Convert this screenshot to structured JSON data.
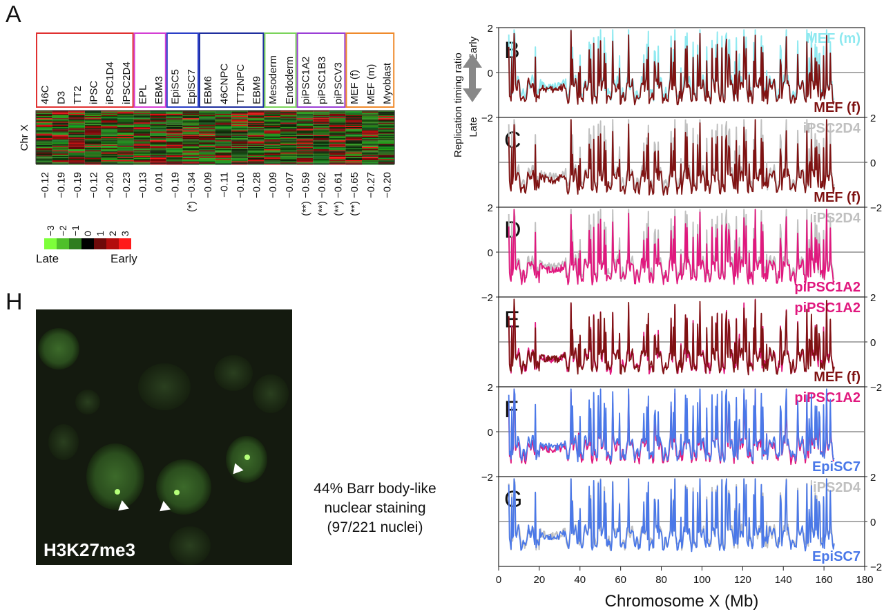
{
  "panel_letters": {
    "A": "A",
    "B": "B",
    "C": "C",
    "D": "D",
    "E": "E",
    "F": "F",
    "G": "G",
    "H": "H"
  },
  "heatmap": {
    "row_label": "Chr X",
    "groups": [
      {
        "color": "#e03131",
        "columns": [
          {
            "name": "46C",
            "score": "−0.12"
          },
          {
            "name": "D3",
            "score": "−0.19"
          },
          {
            "name": "TT2",
            "score": "−0.19"
          },
          {
            "name": "iPSC",
            "score": "−0.12"
          },
          {
            "name": "iPSC1D4",
            "score": "−0.20"
          },
          {
            "name": "iPSC2D4",
            "score": "−0.23"
          }
        ]
      },
      {
        "color": "#d43fd4",
        "columns": [
          {
            "name": "EPL",
            "score": "−0.13"
          },
          {
            "name": "EBM3",
            "score": "0.01"
          }
        ]
      },
      {
        "color": "#2b3fc7",
        "columns": [
          {
            "name": "EpiSC5",
            "score": "−0.19"
          },
          {
            "name": "EpiSC7",
            "score": "(*) −0.34"
          }
        ]
      },
      {
        "color": "#1f2f9e",
        "columns": [
          {
            "name": "EBM6",
            "score": "−0.09"
          },
          {
            "name": "46CNPC",
            "score": "−0.11"
          },
          {
            "name": "TT2NPC",
            "score": "−0.10"
          },
          {
            "name": "EBM9",
            "score": "−0.28"
          }
        ]
      },
      {
        "color": "#7bd35b",
        "columns": [
          {
            "name": "Mesoderm",
            "score": "−0.09"
          },
          {
            "name": "Endoderm",
            "score": "−0.07"
          }
        ]
      },
      {
        "color": "#9b3fd6",
        "columns": [
          {
            "name": "piPSC1A2",
            "score": "(**) −0.59"
          },
          {
            "name": "piPSC1B3",
            "score": "(**) −0.62"
          },
          {
            "name": "piPSCV3",
            "score": "(**) −0.61"
          }
        ]
      },
      {
        "color": "#ef8a2c",
        "columns": [
          {
            "name": "MEF (f)",
            "score": "(**) −0.65"
          },
          {
            "name": "MEF (m)",
            "score": "−0.27"
          },
          {
            "name": "Myoblast",
            "score": "−0.20"
          }
        ]
      }
    ],
    "scale": {
      "ticks": [
        "−3",
        "−2",
        "−1",
        "0",
        "1",
        "2",
        "3"
      ],
      "colors": [
        "#7dff3a",
        "#4fc02a",
        "#2f7d1f",
        "#000000",
        "#6e0a0a",
        "#b30d0d",
        "#ff1a1a"
      ],
      "late_label": "Late",
      "early_label": "Early"
    }
  },
  "chart_data": [
    {
      "type": "line",
      "panel": "B",
      "x_range": [
        0,
        165
      ],
      "ylim": [
        -2,
        2
      ],
      "ticks_left": [
        "2",
        "0",
        "−2"
      ],
      "series": [
        {
          "name": "MEF (m)",
          "color": "#8fe9f0"
        },
        {
          "name": "MEF (f)",
          "color": "#7f1212"
        }
      ]
    },
    {
      "type": "line",
      "panel": "C",
      "x_range": [
        0,
        165
      ],
      "ylim": [
        -2,
        2
      ],
      "ticks_right": [
        "2",
        "0",
        "−2"
      ],
      "series": [
        {
          "name": "iPSC2D4",
          "color": "#c0c0c0"
        },
        {
          "name": "MEF (f)",
          "color": "#7f1212"
        }
      ]
    },
    {
      "type": "line",
      "panel": "D",
      "x_range": [
        0,
        165
      ],
      "ylim": [
        -2,
        2
      ],
      "ticks_left": [
        "2",
        "0",
        "−2"
      ],
      "series": [
        {
          "name": "iPS2D4",
          "color": "#c0c0c0"
        },
        {
          "name": "piPSC1A2",
          "color": "#e0187e"
        }
      ]
    },
    {
      "type": "line",
      "panel": "E",
      "x_range": [
        0,
        165
      ],
      "ylim": [
        -2,
        2
      ],
      "ticks_right": [
        "2",
        "0",
        "−2"
      ],
      "series": [
        {
          "name": "piPSC1A2",
          "color": "#e0187e"
        },
        {
          "name": "MEF (f)",
          "color": "#7f1212"
        }
      ]
    },
    {
      "type": "line",
      "panel": "F",
      "x_range": [
        0,
        165
      ],
      "ylim": [
        -2,
        2
      ],
      "ticks_left": [
        "2",
        "0",
        "−2"
      ],
      "series": [
        {
          "name": "piPSC1A2",
          "color": "#e0187e"
        },
        {
          "name": "EpiSC7",
          "color": "#4a78e8"
        }
      ]
    },
    {
      "type": "line",
      "panel": "G",
      "x_range": [
        0,
        165
      ],
      "ylim": [
        -2,
        2
      ],
      "ticks_right": [
        "2",
        "0",
        "−2"
      ],
      "series": [
        {
          "name": "iPS2D4",
          "color": "#c0c0c0"
        },
        {
          "name": "EpiSC7",
          "color": "#4a78e8"
        }
      ]
    }
  ],
  "tracks_axis": {
    "xlabel": "Chromosome X (Mb)",
    "xlim": [
      0,
      180
    ],
    "xticks": [
      "0",
      "20",
      "40",
      "60",
      "80",
      "100",
      "120",
      "140",
      "160",
      "180"
    ],
    "ylabel": "Replication timing ratio",
    "early_label": "Early",
    "late_label": "Late"
  },
  "micrograph": {
    "stain_label": "H3K27me3",
    "caption_lines": [
      "44% Barr body-like",
      "nuclear staining",
      "(97/221 nuclei)"
    ]
  }
}
